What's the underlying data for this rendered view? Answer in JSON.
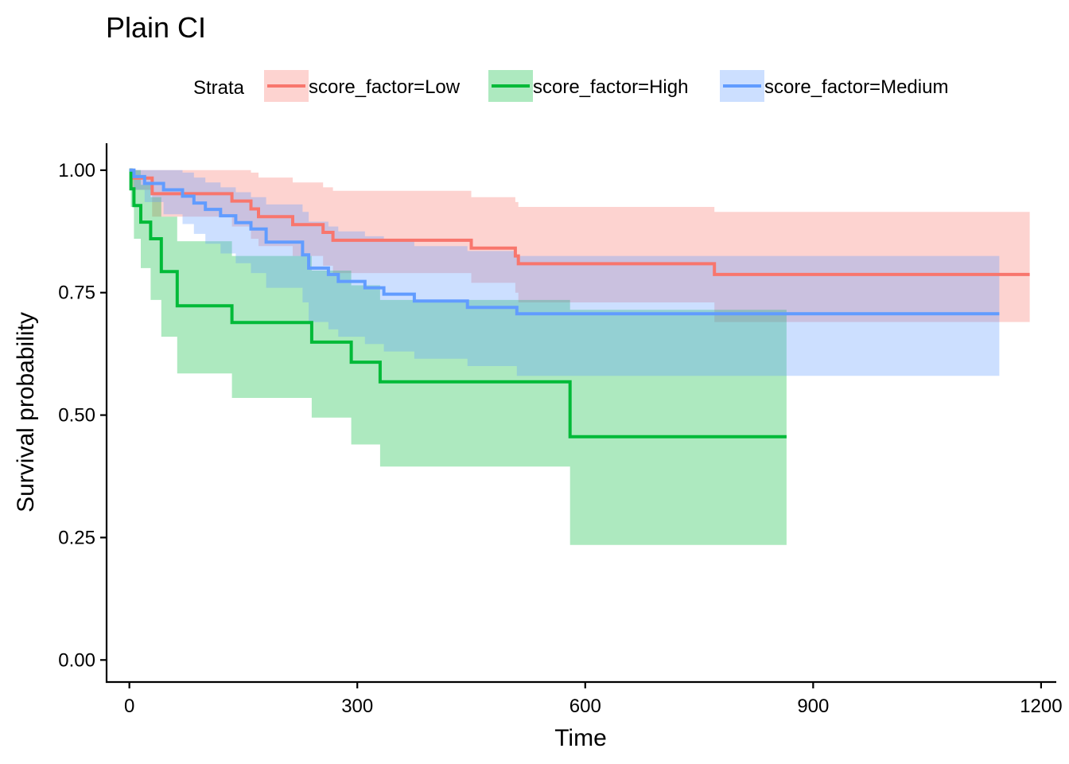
{
  "chart_data": {
    "type": "line",
    "subtype": "kaplan-meier",
    "title": "Plain CI",
    "xlabel": "Time",
    "ylabel": "Survival probability",
    "xlim": [
      -30,
      1220
    ],
    "ylim": [
      -0.045,
      1.055
    ],
    "xticks": [
      0,
      300,
      600,
      900,
      1200
    ],
    "xtick_labels": [
      "0",
      "300",
      "600",
      "900",
      "1200"
    ],
    "yticks": [
      0,
      0.25,
      0.5,
      0.75,
      1
    ],
    "ytick_labels": [
      "0.00",
      "0.25",
      "0.50",
      "0.75",
      "1.00"
    ],
    "grid": false,
    "legend_title": "Strata",
    "legend_position": "top",
    "series": [
      {
        "name": "score_factor=Low",
        "color": "#F8766D",
        "fill": "#F8766D",
        "steps": [
          [
            0,
            1.0
          ],
          [
            3,
            0.984
          ],
          [
            30,
            0.952
          ],
          [
            135,
            0.937
          ],
          [
            160,
            0.921
          ],
          [
            170,
            0.905
          ],
          [
            215,
            0.889
          ],
          [
            255,
            0.873
          ],
          [
            268,
            0.857
          ],
          [
            450,
            0.841
          ],
          [
            508,
            0.825
          ],
          [
            512,
            0.809
          ],
          [
            770,
            0.787
          ],
          [
            1185,
            0.787
          ]
        ],
        "ci_upper": [
          [
            0,
            1.0
          ],
          [
            3,
            1.0
          ],
          [
            30,
            1.0
          ],
          [
            135,
            1.0
          ],
          [
            160,
            0.995
          ],
          [
            170,
            0.985
          ],
          [
            215,
            0.975
          ],
          [
            255,
            0.965
          ],
          [
            268,
            0.958
          ],
          [
            450,
            0.945
          ],
          [
            508,
            0.935
          ],
          [
            512,
            0.925
          ],
          [
            770,
            0.915
          ],
          [
            1185,
            0.915
          ]
        ],
        "ci_lower": [
          [
            0,
            1.0
          ],
          [
            3,
            0.96
          ],
          [
            30,
            0.905
          ],
          [
            135,
            0.885
          ],
          [
            160,
            0.86
          ],
          [
            170,
            0.845
          ],
          [
            215,
            0.825
          ],
          [
            255,
            0.805
          ],
          [
            268,
            0.79
          ],
          [
            450,
            0.77
          ],
          [
            508,
            0.75
          ],
          [
            512,
            0.73
          ],
          [
            770,
            0.69
          ],
          [
            1185,
            0.69
          ]
        ]
      },
      {
        "name": "score_factor=High",
        "color": "#00BA38",
        "fill": "#00BA38",
        "steps": [
          [
            0,
            1.0
          ],
          [
            2,
            0.962
          ],
          [
            6,
            0.928
          ],
          [
            15,
            0.894
          ],
          [
            28,
            0.86
          ],
          [
            42,
            0.793
          ],
          [
            63,
            0.723
          ],
          [
            135,
            0.689
          ],
          [
            240,
            0.649
          ],
          [
            292,
            0.608
          ],
          [
            330,
            0.568
          ],
          [
            580,
            0.456
          ],
          [
            865,
            0.456
          ]
        ],
        "ci_upper": [
          [
            0,
            1.0
          ],
          [
            2,
            1.0
          ],
          [
            6,
            1.0
          ],
          [
            15,
            0.97
          ],
          [
            28,
            0.945
          ],
          [
            42,
            0.905
          ],
          [
            63,
            0.855
          ],
          [
            135,
            0.825
          ],
          [
            240,
            0.795
          ],
          [
            292,
            0.765
          ],
          [
            330,
            0.735
          ],
          [
            580,
            0.715
          ],
          [
            865,
            0.715
          ]
        ],
        "ci_lower": [
          [
            0,
            1.0
          ],
          [
            2,
            0.925
          ],
          [
            6,
            0.86
          ],
          [
            15,
            0.8
          ],
          [
            28,
            0.735
          ],
          [
            42,
            0.66
          ],
          [
            63,
            0.585
          ],
          [
            135,
            0.535
          ],
          [
            240,
            0.495
          ],
          [
            292,
            0.44
          ],
          [
            330,
            0.395
          ],
          [
            580,
            0.235
          ],
          [
            865,
            0.235
          ]
        ]
      },
      {
        "name": "score_factor=Medium",
        "color": "#619CFF",
        "fill": "#619CFF",
        "steps": [
          [
            0,
            1.0
          ],
          [
            6,
            0.987
          ],
          [
            20,
            0.973
          ],
          [
            45,
            0.96
          ],
          [
            70,
            0.947
          ],
          [
            85,
            0.933
          ],
          [
            100,
            0.92
          ],
          [
            120,
            0.907
          ],
          [
            140,
            0.893
          ],
          [
            160,
            0.88
          ],
          [
            180,
            0.853
          ],
          [
            228,
            0.827
          ],
          [
            236,
            0.8
          ],
          [
            262,
            0.787
          ],
          [
            275,
            0.773
          ],
          [
            310,
            0.76
          ],
          [
            335,
            0.747
          ],
          [
            375,
            0.733
          ],
          [
            445,
            0.72
          ],
          [
            510,
            0.707
          ],
          [
            1145,
            0.707
          ]
        ],
        "ci_upper": [
          [
            0,
            1.0
          ],
          [
            6,
            1.0
          ],
          [
            20,
            1.0
          ],
          [
            45,
            1.0
          ],
          [
            70,
            0.995
          ],
          [
            85,
            0.985
          ],
          [
            100,
            0.975
          ],
          [
            120,
            0.965
          ],
          [
            140,
            0.955
          ],
          [
            160,
            0.945
          ],
          [
            180,
            0.93
          ],
          [
            228,
            0.915
          ],
          [
            236,
            0.895
          ],
          [
            262,
            0.885
          ],
          [
            275,
            0.875
          ],
          [
            310,
            0.865
          ],
          [
            335,
            0.855
          ],
          [
            375,
            0.845
          ],
          [
            445,
            0.835
          ],
          [
            510,
            0.825
          ],
          [
            1145,
            0.825
          ]
        ],
        "ci_lower": [
          [
            0,
            1.0
          ],
          [
            6,
            0.96
          ],
          [
            20,
            0.935
          ],
          [
            45,
            0.91
          ],
          [
            70,
            0.89
          ],
          [
            85,
            0.87
          ],
          [
            100,
            0.85
          ],
          [
            120,
            0.83
          ],
          [
            140,
            0.81
          ],
          [
            160,
            0.79
          ],
          [
            180,
            0.76
          ],
          [
            228,
            0.73
          ],
          [
            236,
            0.69
          ],
          [
            262,
            0.675
          ],
          [
            275,
            0.66
          ],
          [
            310,
            0.645
          ],
          [
            335,
            0.63
          ],
          [
            375,
            0.615
          ],
          [
            445,
            0.6
          ],
          [
            510,
            0.58
          ],
          [
            1145,
            0.58
          ]
        ]
      }
    ]
  }
}
